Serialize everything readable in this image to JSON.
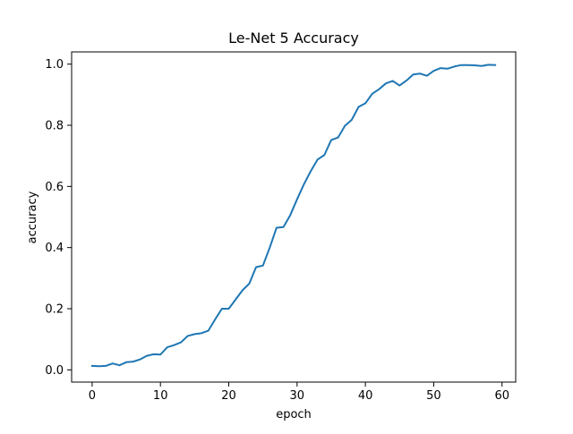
{
  "chart_data": {
    "type": "line",
    "title": "Le-Net 5 Accuracy",
    "xlabel": "epoch",
    "ylabel": "accuracy",
    "xlim": [
      -3,
      62
    ],
    "ylim": [
      -0.04,
      1.04
    ],
    "xticks": [
      0,
      10,
      20,
      30,
      40,
      50,
      60
    ],
    "yticks": [
      0.0,
      0.2,
      0.4,
      0.6,
      0.8,
      1.0
    ],
    "xtick_labels": [
      "0",
      "10",
      "20",
      "30",
      "40",
      "50",
      "60"
    ],
    "ytick_labels": [
      "0.0",
      "0.2",
      "0.4",
      "0.6",
      "0.8",
      "1.0"
    ],
    "grid": false,
    "series": [
      {
        "color": "#1f77b4",
        "x": [
          0,
          1,
          2,
          3,
          4,
          5,
          6,
          7,
          8,
          9,
          10,
          11,
          12,
          13,
          14,
          15,
          16,
          17,
          18,
          19,
          20,
          21,
          22,
          23,
          24,
          25,
          26,
          27,
          28,
          29,
          30,
          31,
          32,
          33,
          34,
          35,
          36,
          37,
          38,
          39,
          40,
          41,
          42,
          43,
          44,
          45,
          46,
          47,
          48,
          49,
          50,
          51,
          52,
          53,
          54,
          55,
          56,
          57,
          58,
          59
        ],
        "y": [
          0.013,
          0.012,
          0.013,
          0.021,
          0.015,
          0.025,
          0.027,
          0.034,
          0.046,
          0.051,
          0.05,
          0.074,
          0.081,
          0.09,
          0.111,
          0.117,
          0.12,
          0.128,
          0.165,
          0.2,
          0.2,
          0.23,
          0.26,
          0.282,
          0.336,
          0.341,
          0.4,
          0.465,
          0.467,
          0.506,
          0.558,
          0.607,
          0.65,
          0.688,
          0.703,
          0.752,
          0.76,
          0.798,
          0.818,
          0.86,
          0.872,
          0.903,
          0.918,
          0.937,
          0.945,
          0.93,
          0.946,
          0.966,
          0.969,
          0.962,
          0.978,
          0.987,
          0.985,
          0.992,
          0.997,
          0.997,
          0.996,
          0.994,
          0.998,
          0.997
        ]
      }
    ]
  }
}
